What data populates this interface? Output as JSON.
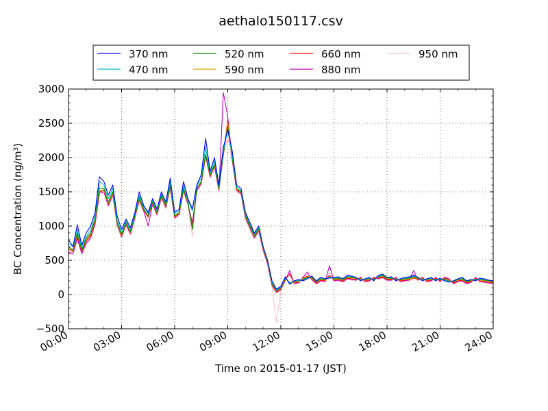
{
  "chart_data": {
    "type": "line",
    "title": "aethalo150117.csv",
    "xlabel": "Time on 2015-01-17 (JST)",
    "ylabel": "BC Concentration (ng/m",
    "ylabel_superscript": "3",
    "ylabel_suffix": ")",
    "x_unit": "hour",
    "xlim": [
      0,
      24
    ],
    "ylim": [
      -500,
      3000
    ],
    "x_ticks": [
      0,
      3,
      6,
      9,
      12,
      15,
      18,
      21,
      24
    ],
    "x_tick_labels": [
      "00:00",
      "03:00",
      "06:00",
      "09:00",
      "12:00",
      "15:00",
      "18:00",
      "21:00",
      "24:00"
    ],
    "y_ticks": [
      -500,
      0,
      500,
      1000,
      1500,
      2000,
      2500,
      3000
    ],
    "y_tick_labels": [
      "−500",
      "0",
      "500",
      "1000",
      "1500",
      "2000",
      "2500",
      "3000"
    ],
    "grid": true,
    "legend_position": "top-center",
    "x": [
      0.0,
      0.25,
      0.5,
      0.75,
      1.0,
      1.25,
      1.5,
      1.75,
      2.0,
      2.25,
      2.5,
      2.75,
      3.0,
      3.25,
      3.5,
      3.75,
      4.0,
      4.25,
      4.5,
      4.75,
      5.0,
      5.25,
      5.5,
      5.75,
      6.0,
      6.25,
      6.5,
      6.75,
      7.0,
      7.25,
      7.5,
      7.75,
      8.0,
      8.25,
      8.5,
      8.75,
      9.0,
      9.25,
      9.5,
      9.75,
      10.0,
      10.25,
      10.5,
      10.75,
      11.0,
      11.25,
      11.5,
      11.75,
      12.0,
      12.25,
      12.5,
      12.75,
      13.0,
      13.25,
      13.5,
      13.75,
      14.0,
      14.25,
      14.5,
      14.75,
      15.0,
      15.25,
      15.5,
      15.75,
      16.0,
      16.25,
      16.5,
      16.75,
      17.0,
      17.25,
      17.5,
      17.75,
      18.0,
      18.25,
      18.5,
      18.75,
      19.0,
      19.25,
      19.5,
      19.75,
      20.0,
      20.25,
      20.5,
      20.75,
      21.0,
      21.25,
      21.5,
      21.75,
      22.0,
      22.25,
      22.5,
      22.75,
      23.0,
      23.25,
      23.5,
      23.75,
      24.0
    ],
    "series": [
      {
        "name": "370 nm",
        "color": "#0000ff",
        "values": [
          800,
          700,
          1020,
          720,
          900,
          1000,
          1200,
          1720,
          1650,
          1450,
          1600,
          1150,
          950,
          1100,
          980,
          1200,
          1500,
          1300,
          1200,
          1400,
          1250,
          1500,
          1350,
          1700,
          1200,
          1250,
          1650,
          1400,
          1250,
          1600,
          1750,
          2280,
          1800,
          2000,
          1600,
          2150,
          2400,
          2100,
          1600,
          1550,
          1200,
          1050,
          900,
          1000,
          700,
          500,
          200,
          80,
          120,
          260,
          150,
          200,
          220,
          200,
          230,
          270,
          200,
          250,
          230,
          240,
          250,
          260,
          230,
          280,
          270,
          250,
          200,
          230,
          250,
          200,
          280,
          300,
          250,
          260,
          200,
          230,
          250,
          260,
          280,
          250,
          200,
          230,
          250,
          200,
          240,
          200,
          180,
          200,
          230,
          250,
          200,
          220,
          200,
          240,
          230,
          210,
          200
        ]
      },
      {
        "name": "470 nm",
        "color": "#00bfbf",
        "values": [
          750,
          700,
          950,
          680,
          850,
          950,
          1150,
          1650,
          1600,
          1400,
          1550,
          1100,
          900,
          1080,
          950,
          1180,
          1450,
          1280,
          1180,
          1380,
          1230,
          1480,
          1330,
          1650,
          1180,
          1230,
          1600,
          1380,
          1220,
          1580,
          1700,
          2150,
          1780,
          1950,
          1580,
          2100,
          2400,
          2050,
          1580,
          1520,
          1180,
          1030,
          880,
          980,
          690,
          490,
          180,
          70,
          110,
          250,
          160,
          200,
          210,
          210,
          240,
          260,
          200,
          240,
          230,
          250,
          240,
          250,
          230,
          270,
          260,
          250,
          210,
          230,
          240,
          210,
          270,
          290,
          250,
          250,
          210,
          230,
          240,
          250,
          270,
          250,
          210,
          230,
          240,
          210,
          230,
          210,
          190,
          200,
          230,
          240,
          200,
          220,
          210,
          230,
          220,
          210,
          200
        ]
      },
      {
        "name": "520 nm",
        "color": "#008000",
        "values": [
          700,
          650,
          900,
          650,
          820,
          900,
          1100,
          1550,
          1550,
          1350,
          1500,
          1050,
          880,
          1050,
          920,
          1150,
          1420,
          1250,
          1150,
          1350,
          1200,
          1450,
          1300,
          1600,
          1150,
          1200,
          1550,
          1350,
          950,
          1550,
          1650,
          2050,
          1750,
          1900,
          1550,
          2050,
          2450,
          2000,
          1550,
          1500,
          1150,
          1000,
          860,
          960,
          680,
          480,
          160,
          60,
          100,
          240,
          170,
          190,
          200,
          220,
          250,
          250,
          190,
          230,
          220,
          260,
          230,
          240,
          220,
          260,
          250,
          240,
          220,
          220,
          230,
          220,
          260,
          280,
          240,
          240,
          220,
          220,
          230,
          240,
          260,
          240,
          220,
          220,
          230,
          220,
          220,
          220,
          200,
          190,
          220,
          230,
          190,
          210,
          220,
          220,
          210,
          200,
          190
        ]
      },
      {
        "name": "590 nm",
        "color": "#ccaa00",
        "values": [
          680,
          640,
          880,
          640,
          800,
          880,
          1080,
          1520,
          1530,
          1330,
          1480,
          1040,
          860,
          1040,
          910,
          1140,
          1400,
          1240,
          1140,
          1340,
          1190,
          1440,
          1290,
          1580,
          1140,
          1190,
          1540,
          1340,
          970,
          1540,
          1640,
          2040,
          1740,
          1890,
          1540,
          2040,
          2500,
          1990,
          1540,
          1490,
          1140,
          990,
          850,
          950,
          670,
          470,
          150,
          50,
          90,
          230,
          180,
          180,
          190,
          230,
          260,
          240,
          180,
          220,
          210,
          270,
          220,
          230,
          210,
          250,
          240,
          230,
          230,
          210,
          220,
          230,
          250,
          270,
          230,
          230,
          230,
          210,
          220,
          230,
          250,
          230,
          230,
          210,
          220,
          230,
          210,
          230,
          210,
          180,
          210,
          220,
          180,
          200,
          230,
          210,
          200,
          190,
          180
        ]
      },
      {
        "name": "660 nm",
        "color": "#ff0000",
        "values": [
          660,
          630,
          860,
          630,
          780,
          860,
          1060,
          1500,
          1520,
          1320,
          1470,
          1030,
          850,
          1030,
          900,
          1130,
          1390,
          1230,
          1130,
          1330,
          1180,
          1430,
          1280,
          1570,
          1130,
          1180,
          1530,
          1330,
          1000,
          1530,
          1630,
          2030,
          1730,
          1880,
          1530,
          2030,
          2550,
          1980,
          1530,
          1480,
          1130,
          980,
          840,
          940,
          660,
          460,
          140,
          40,
          80,
          220,
          300,
          170,
          180,
          240,
          270,
          230,
          170,
          210,
          200,
          280,
          210,
          220,
          200,
          240,
          230,
          220,
          240,
          200,
          210,
          240,
          240,
          260,
          220,
          220,
          240,
          200,
          210,
          220,
          240,
          220,
          240,
          200,
          210,
          240,
          200,
          240,
          220,
          170,
          200,
          210,
          170,
          190,
          240,
          200,
          190,
          180,
          170
        ]
      },
      {
        "name": "880 nm",
        "color": "#bf00bf",
        "values": [
          620,
          600,
          820,
          600,
          750,
          830,
          1030,
          1480,
          1500,
          1300,
          1460,
          1020,
          840,
          1020,
          890,
          1120,
          1380,
          1220,
          1000,
          1320,
          1170,
          1420,
          1270,
          1560,
          1120,
          1170,
          1520,
          1320,
          1050,
          1520,
          1620,
          2020,
          1720,
          1870,
          1520,
          2950,
          2600,
          1970,
          1520,
          1470,
          1120,
          970,
          830,
          930,
          650,
          450,
          130,
          30,
          70,
          210,
          350,
          160,
          170,
          250,
          330,
          220,
          160,
          200,
          190,
          420,
          200,
          210,
          190,
          230,
          220,
          210,
          250,
          190,
          200,
          250,
          230,
          250,
          210,
          210,
          250,
          190,
          200,
          210,
          350,
          210,
          250,
          190,
          200,
          250,
          190,
          250,
          230,
          160,
          190,
          200,
          160,
          180,
          250,
          190,
          180,
          170,
          160
        ]
      },
      {
        "name": "950 nm",
        "color": "#ffc0cb",
        "values": [
          600,
          580,
          800,
          580,
          730,
          810,
          1010,
          1460,
          1480,
          1280,
          1440,
          1000,
          820,
          1000,
          870,
          1100,
          1360,
          1200,
          1120,
          1300,
          1150,
          1400,
          1250,
          1540,
          1100,
          1150,
          1500,
          1300,
          840,
          1500,
          1600,
          2000,
          1700,
          1850,
          1500,
          2050,
          2300,
          1950,
          1500,
          1450,
          1100,
          950,
          810,
          910,
          630,
          430,
          110,
          -400,
          60,
          200,
          320,
          150,
          160,
          260,
          300,
          210,
          150,
          190,
          180,
          330,
          190,
          200,
          180,
          220,
          210,
          200,
          260,
          180,
          190,
          260,
          220,
          240,
          200,
          200,
          260,
          180,
          190,
          200,
          300,
          200,
          260,
          180,
          190,
          260,
          180,
          260,
          240,
          150,
          180,
          190,
          150,
          170,
          260,
          180,
          170,
          160,
          150
        ]
      }
    ]
  }
}
